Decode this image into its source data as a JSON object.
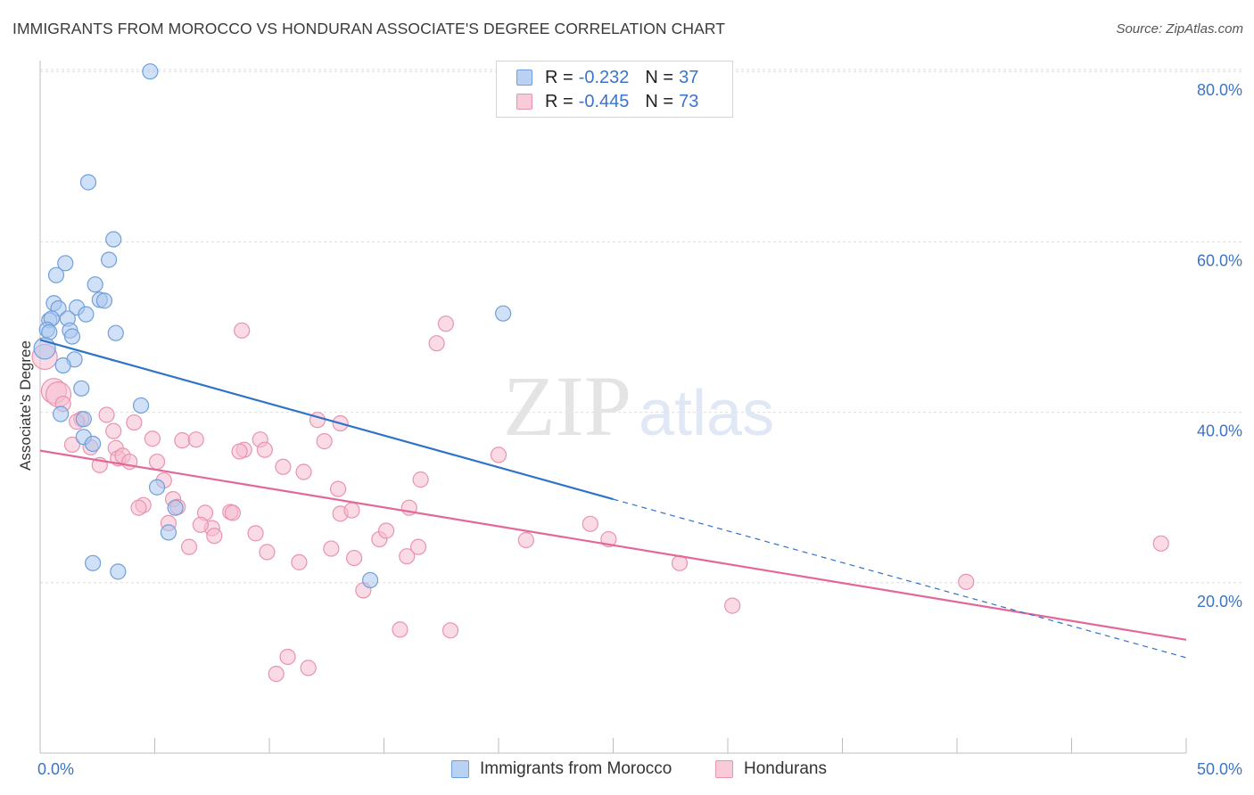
{
  "title": "IMMIGRANTS FROM MOROCCO VS HONDURAN ASSOCIATE'S DEGREE CORRELATION CHART",
  "source": "Source: ZipAtlas.com",
  "watermark": {
    "zip": "ZIP",
    "atlas": "atlas"
  },
  "legend": {
    "rows": [
      {
        "r_label": "R =",
        "r_value": "-0.232",
        "n_label": "N =",
        "n_value": "37"
      },
      {
        "r_label": "R =",
        "r_value": "-0.445",
        "n_label": "N =",
        "n_value": "73"
      }
    ]
  },
  "bottom_legend": {
    "morocco": "Immigrants from Morocco",
    "hondurans": "Hondurans"
  },
  "colors": {
    "blue_fill": "#a9c7ee",
    "blue_stroke": "#6f9fdc",
    "blue_line": "#2f72c8",
    "pink_fill": "#f6bccd",
    "pink_stroke": "#ea93ad",
    "pink_line": "#e4679a",
    "tick_text": "#3b74c9",
    "grid": "#dedede"
  },
  "chart_data": {
    "type": "scatter",
    "title": "IMMIGRANTS FROM MOROCCO VS HONDURAN ASSOCIATE'S DEGREE CORRELATION CHART",
    "xlabel": "",
    "ylabel": "Associate's Degree",
    "xlim": [
      0,
      50
    ],
    "ylim": [
      0,
      82
    ],
    "x_tick_labels": [
      {
        "value": 0,
        "label": "0.0%"
      },
      {
        "value": 50,
        "label": "50.0%"
      }
    ],
    "y_tick_labels": [
      {
        "value": 20,
        "label": "20.0%"
      },
      {
        "value": 40,
        "label": "40.0%"
      },
      {
        "value": 60,
        "label": "60.0%"
      },
      {
        "value": 80,
        "label": "80.0%"
      }
    ],
    "x_minor_ticks": [
      5,
      10,
      15,
      20,
      25,
      30,
      35,
      40,
      45,
      50
    ],
    "grid": true,
    "legend_position": "top-center",
    "series": [
      {
        "name": "Immigrants from Morocco",
        "color": "blue",
        "R": -0.232,
        "N": 37,
        "trend": {
          "x0": 0,
          "y0": 48.5,
          "x1": 25,
          "y1": 29.8,
          "dash_to_x": 50,
          "dash_to_y": 11.2
        },
        "points": [
          [
            4.8,
            80.0
          ],
          [
            2.1,
            67.0
          ],
          [
            3.2,
            60.3
          ],
          [
            3.0,
            57.9
          ],
          [
            1.1,
            57.5
          ],
          [
            0.7,
            56.1
          ],
          [
            2.4,
            55.0
          ],
          [
            2.6,
            53.2
          ],
          [
            2.8,
            53.1
          ],
          [
            0.6,
            52.8
          ],
          [
            0.8,
            52.2
          ],
          [
            1.6,
            52.3
          ],
          [
            2.0,
            51.5
          ],
          [
            0.4,
            50.8
          ],
          [
            0.5,
            51.0
          ],
          [
            1.2,
            51.0
          ],
          [
            0.3,
            49.7
          ],
          [
            0.4,
            49.4
          ],
          [
            1.3,
            49.6
          ],
          [
            1.4,
            48.9
          ],
          [
            3.3,
            49.3
          ],
          [
            1.5,
            46.2
          ],
          [
            1.0,
            45.5
          ],
          [
            1.8,
            42.8
          ],
          [
            4.4,
            40.8
          ],
          [
            0.9,
            39.8
          ],
          [
            1.9,
            39.2
          ],
          [
            1.9,
            37.1
          ],
          [
            2.3,
            36.3
          ],
          [
            5.1,
            31.2
          ],
          [
            5.9,
            28.8
          ],
          [
            5.6,
            25.9
          ],
          [
            2.3,
            22.3
          ],
          [
            3.4,
            21.3
          ],
          [
            14.4,
            20.3
          ],
          [
            20.2,
            51.6
          ],
          [
            0.2,
            47.5
          ]
        ]
      },
      {
        "name": "Hondurans",
        "color": "pink",
        "R": -0.445,
        "N": 73,
        "trend": {
          "x0": 0,
          "y0": 35.5,
          "x1": 50,
          "y1": 13.3
        },
        "points": [
          [
            0.2,
            46.5
          ],
          [
            0.6,
            42.5
          ],
          [
            0.8,
            42.1
          ],
          [
            1.0,
            41.0
          ],
          [
            1.8,
            39.2
          ],
          [
            2.9,
            39.7
          ],
          [
            3.3,
            35.8
          ],
          [
            4.1,
            38.8
          ],
          [
            3.4,
            34.6
          ],
          [
            4.9,
            36.9
          ],
          [
            1.4,
            36.2
          ],
          [
            2.2,
            35.9
          ],
          [
            2.6,
            33.8
          ],
          [
            3.2,
            37.8
          ],
          [
            3.6,
            34.9
          ],
          [
            3.9,
            34.2
          ],
          [
            5.1,
            34.2
          ],
          [
            5.4,
            32.0
          ],
          [
            4.5,
            29.1
          ],
          [
            4.3,
            28.8
          ],
          [
            5.8,
            29.8
          ],
          [
            6.0,
            28.9
          ],
          [
            6.2,
            36.7
          ],
          [
            6.8,
            36.8
          ],
          [
            7.2,
            28.2
          ],
          [
            7.5,
            26.4
          ],
          [
            7.6,
            25.5
          ],
          [
            5.6,
            27.0
          ],
          [
            6.5,
            24.2
          ],
          [
            7.0,
            26.8
          ],
          [
            8.3,
            28.3
          ],
          [
            8.4,
            28.2
          ],
          [
            8.9,
            35.6
          ],
          [
            8.7,
            35.4
          ],
          [
            9.6,
            36.8
          ],
          [
            9.8,
            35.6
          ],
          [
            9.4,
            25.8
          ],
          [
            9.9,
            23.6
          ],
          [
            10.6,
            33.6
          ],
          [
            11.5,
            33.0
          ],
          [
            11.3,
            22.4
          ],
          [
            12.1,
            39.1
          ],
          [
            12.4,
            36.6
          ],
          [
            13.1,
            38.7
          ],
          [
            13.1,
            28.1
          ],
          [
            13.0,
            31.0
          ],
          [
            13.6,
            28.5
          ],
          [
            12.7,
            24.0
          ],
          [
            13.7,
            22.9
          ],
          [
            14.1,
            19.1
          ],
          [
            14.8,
            25.1
          ],
          [
            15.1,
            26.1
          ],
          [
            15.7,
            14.5
          ],
          [
            16.0,
            23.1
          ],
          [
            16.1,
            28.8
          ],
          [
            16.5,
            24.2
          ],
          [
            16.6,
            32.1
          ],
          [
            17.3,
            48.1
          ],
          [
            17.7,
            50.4
          ],
          [
            17.9,
            14.4
          ],
          [
            11.7,
            10.0
          ],
          [
            10.8,
            11.3
          ],
          [
            10.3,
            9.3
          ],
          [
            8.8,
            49.6
          ],
          [
            20.0,
            35.0
          ],
          [
            21.2,
            25.0
          ],
          [
            24.0,
            26.9
          ],
          [
            24.8,
            25.1
          ],
          [
            27.9,
            22.3
          ],
          [
            30.2,
            17.3
          ],
          [
            40.4,
            20.1
          ],
          [
            48.9,
            24.6
          ],
          [
            1.6,
            38.9
          ]
        ]
      }
    ]
  }
}
